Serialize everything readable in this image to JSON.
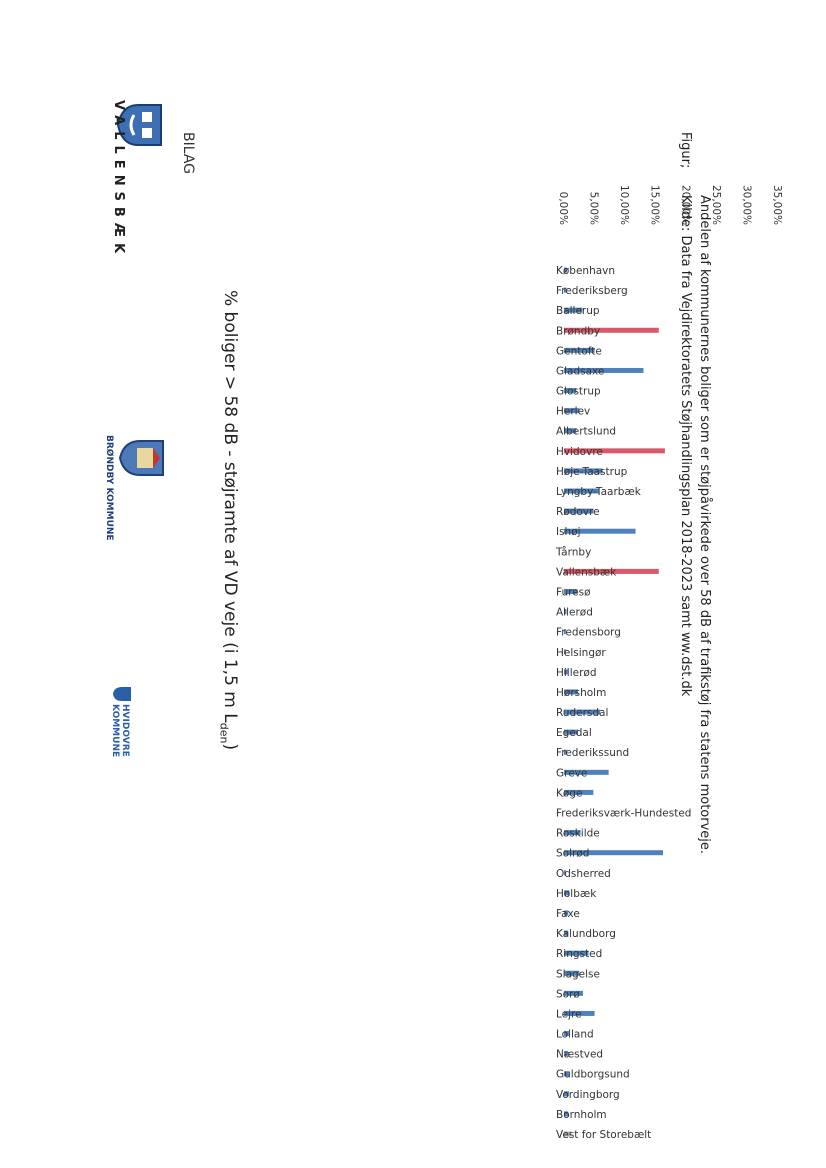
{
  "header": {
    "bilag": "BILAG",
    "logos": {
      "vallensbaek": "VALLENSBÆK",
      "brondby": "BRØNDBY KOMMUNE",
      "hvidovre_line1": "HVIDOVRE",
      "hvidovre_line2": "KOMMUNE"
    }
  },
  "chart_data": {
    "type": "bar",
    "title_main": "% boliger > 58 dB - støjramte af VD veje (i 1,5 m L",
    "title_sub": "den",
    "title_end": ")",
    "ylim": [
      0,
      35
    ],
    "yticks": [
      "0,00%",
      "5,00%",
      "10,00%",
      "15,00%",
      "20,00%",
      "25,00%",
      "30,00%",
      "35,00%"
    ],
    "categories": [
      "København",
      "Frederiksberg",
      "Ballerup",
      "Brøndby",
      "Gentofte",
      "Gladsaxe",
      "Glostrup",
      "Herlev",
      "Albertslund",
      "Hvidovre",
      "Høje-Taastrup",
      "Lyngby-Taarbæk",
      "Rødovre",
      "Ishøj",
      "Tårnby",
      "Vallensbæk",
      "Furesø",
      "Allerød",
      "Fredensborg",
      "Helsingør",
      "Hillerød",
      "Hørsholm",
      "Rudersdal",
      "Egedal",
      "Frederikssund",
      "Greve",
      "Køge",
      "Frederiksværk-Hundested",
      "Roskilde",
      "Solrød",
      "Odsherred",
      "Holbæk",
      "Faxe",
      "Kalundborg",
      "Ringsted",
      "Slagelse",
      "Sorø",
      "Lejre",
      "Lolland",
      "Næstved",
      "Guldborgsund",
      "Vordingborg",
      "Bornholm",
      "Vest for Storebælt"
    ],
    "values": [
      0.5,
      0.4,
      3.0,
      15.5,
      5.0,
      13.0,
      2.0,
      2.5,
      2.0,
      16.5,
      6.3,
      5.8,
      4.8,
      11.7,
      0.0,
      15.5,
      2.2,
      0.4,
      0.3,
      0.3,
      0.6,
      2.3,
      5.9,
      2.3,
      0.5,
      7.3,
      4.8,
      0.0,
      2.7,
      16.2,
      0.3,
      0.9,
      0.7,
      0.7,
      4.0,
      2.5,
      3.1,
      5.0,
      0.8,
      0.6,
      0.8,
      0.8,
      0.7,
      1.2
    ],
    "highlight": [
      "Brøndby",
      "Hvidovre",
      "Vallensbæk"
    ],
    "colors": {
      "normal": "#4f81bd",
      "highlight": "#d9596a",
      "other": "#b0b0b0"
    },
    "grid": false
  },
  "caption": {
    "label": "Figur;",
    "line1": "Andelen af kommunernes boliger som er støjpåvirkede over 58 dB af trafikstøj fra statens motorveje.",
    "line2": "Kilde: Data fra Vejdirektoratets Støjhandlingsplan 2018-2023 samt ww.dst.dk"
  }
}
